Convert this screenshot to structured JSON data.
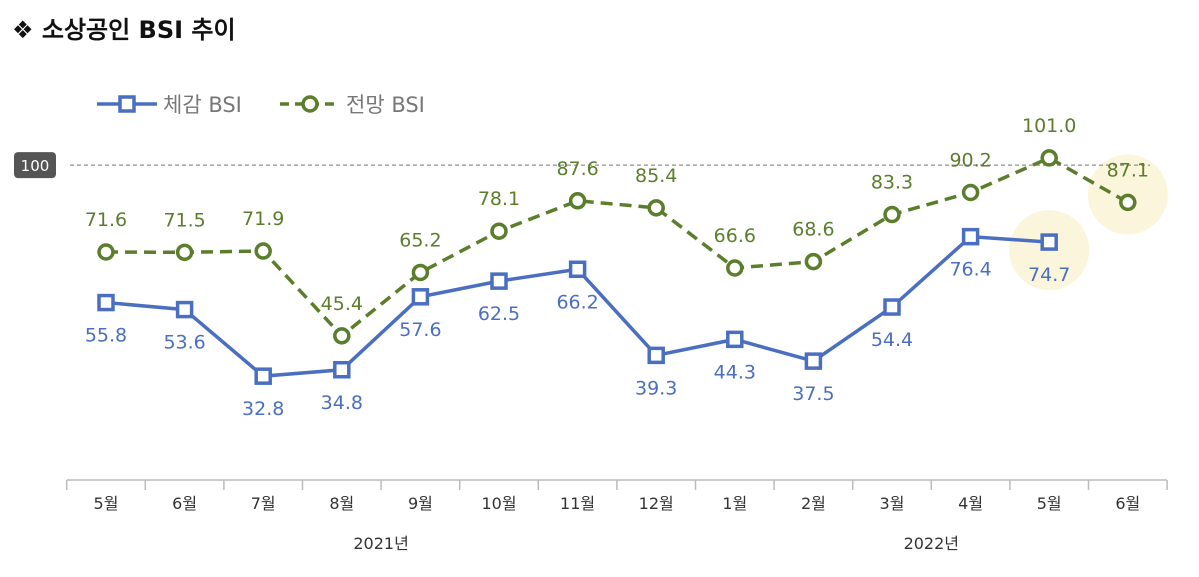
{
  "chart_data": {
    "type": "line",
    "title": "❖  소상공인  BSI  추이",
    "categories": [
      "5월",
      "6월",
      "7월",
      "8월",
      "9월",
      "10월",
      "11월",
      "12월",
      "1월",
      "2월",
      "3월",
      "4월",
      "5월",
      "6월"
    ],
    "year_groups": [
      {
        "label": "2021년",
        "from": 0,
        "to": 7
      },
      {
        "label": "2022년",
        "from": 8,
        "to": 13
      }
    ],
    "reference_line": {
      "value": 100,
      "label": "100"
    },
    "series": [
      {
        "name": "체감 BSI",
        "color": "#4a6fc0",
        "marker": "square",
        "dash": "solid",
        "values": [
          55.8,
          53.6,
          32.8,
          34.8,
          57.6,
          62.5,
          66.2,
          39.3,
          44.3,
          37.5,
          54.4,
          76.4,
          74.7,
          null
        ]
      },
      {
        "name": "전망 BSI",
        "color": "#5b7e2c",
        "marker": "circle",
        "dash": "dashed",
        "values": [
          71.6,
          71.5,
          71.9,
          45.4,
          65.2,
          78.1,
          87.6,
          85.4,
          66.6,
          68.6,
          83.3,
          90.2,
          101.0,
          87.1
        ]
      }
    ],
    "highlights": [
      {
        "series": 0,
        "index": 12
      },
      {
        "series": 1,
        "index": 13
      }
    ],
    "highlight_color": "#fbf5dc",
    "legend": "top-left",
    "grid": false
  }
}
